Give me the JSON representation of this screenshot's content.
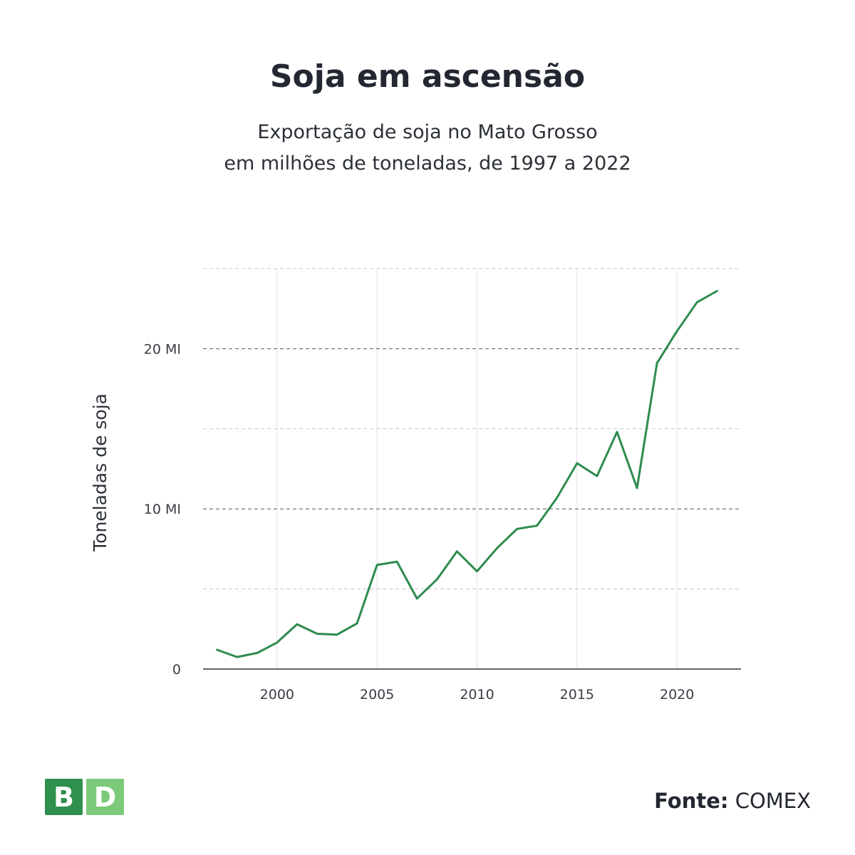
{
  "header": {
    "title": "Soja em ascensão",
    "subtitle_line1": "Exportação de soja no Mato Grosso",
    "subtitle_line2": "em milhões de toneladas, de 1997 a 2022"
  },
  "footer": {
    "logo_letters": [
      "B",
      "D"
    ],
    "source_label": "Fonte:",
    "source_value": "COMEX"
  },
  "colors": {
    "line": "#2e8b4f",
    "logo_b": "#2f8f4e",
    "logo_d": "#7dc97a",
    "grid_major": "#555555",
    "grid_minor": "#c8c8c8",
    "text": "#232731"
  },
  "chart_data": {
    "type": "line",
    "title": "Soja em ascensão",
    "ylabel": "Toneladas de soja",
    "xlabel": "",
    "xlim": [
      1996.3,
      2023.2
    ],
    "ylim": [
      0,
      25
    ],
    "grid": true,
    "x_ticks": [
      2000,
      2005,
      2010,
      2015,
      2020
    ],
    "x_tick_labels": [
      "2000",
      "2005",
      "2010",
      "2015",
      "2020"
    ],
    "y_ticks": [
      0,
      10,
      20
    ],
    "y_tick_labels": [
      "0",
      "10 MI",
      "20 MI"
    ],
    "series": [
      {
        "x": [
          1997,
          1998,
          1999,
          2000,
          2001,
          2002,
          2003,
          2004,
          2005,
          2006,
          2007,
          2008,
          2009,
          2010,
          2011,
          2012,
          2013,
          2014,
          2015,
          2016,
          2017,
          2018,
          2019,
          2020,
          2021,
          2022
        ],
        "values": [
          1.2,
          0.75,
          1.0,
          1.65,
          2.8,
          2.2,
          2.15,
          2.85,
          6.5,
          6.7,
          4.4,
          5.6,
          7.35,
          6.1,
          7.55,
          8.75,
          8.95,
          10.7,
          12.85,
          12.05,
          14.8,
          11.3,
          19.1,
          21.1,
          22.9,
          23.6
        ]
      }
    ]
  }
}
